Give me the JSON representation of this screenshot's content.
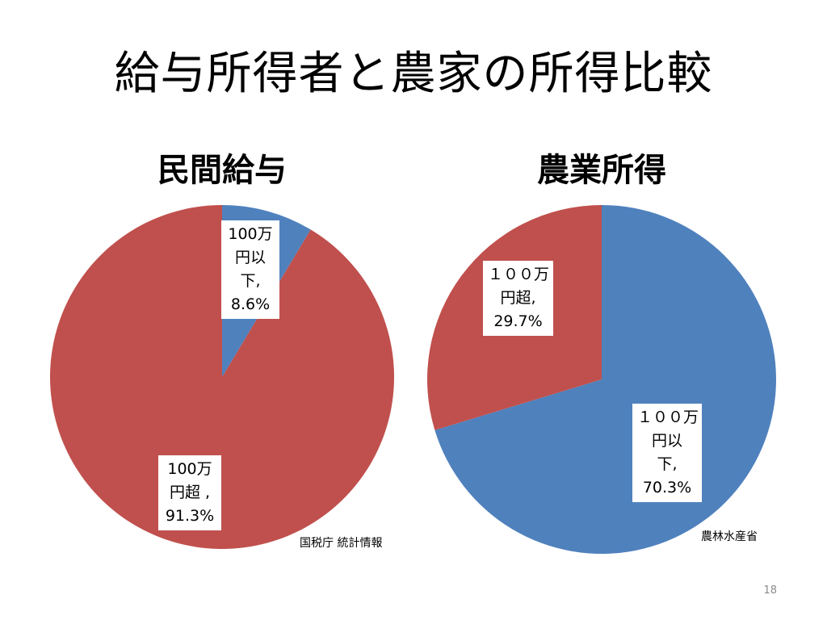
{
  "title": "給与所得者と農家の所得比較",
  "page_number": "18",
  "colors": {
    "blue": "#4f81bd",
    "red": "#c0504d"
  },
  "chart_data": [
    {
      "type": "pie",
      "title": "民間給与",
      "source": "国税庁 統計情報",
      "slices": [
        {
          "value": 8.6,
          "color": "#4f81bd",
          "label_lines": [
            "100万",
            "円以",
            "下,",
            "8.6%"
          ]
        },
        {
          "value": 91.3,
          "color": "#c0504d",
          "label_lines": [
            "100万",
            "円超 ,",
            "91.3%"
          ]
        }
      ]
    },
    {
      "type": "pie",
      "title": "農業所得",
      "source": "農林水産省",
      "slices": [
        {
          "value": 70.3,
          "color": "#4f81bd",
          "label_lines": [
            "１００万",
            "円以",
            "下,",
            "70.3%"
          ]
        },
        {
          "value": 29.7,
          "color": "#c0504d",
          "label_lines": [
            "１００万",
            "円超,",
            "29.7%"
          ]
        }
      ]
    }
  ]
}
